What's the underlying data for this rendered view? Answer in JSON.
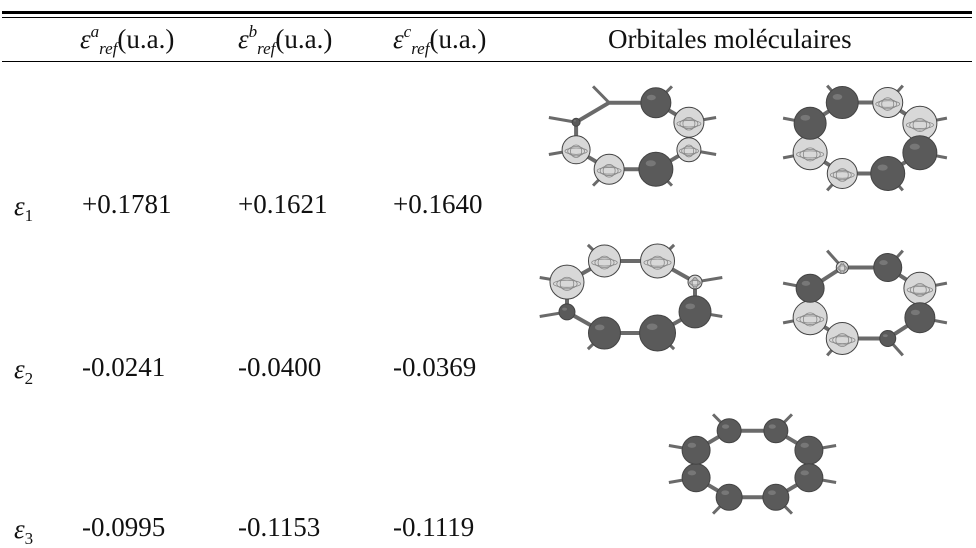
{
  "table": {
    "headers": {
      "col_a": {
        "sym": "ε",
        "sup": "a",
        "sub": "ref",
        "unit": "(u.a.)"
      },
      "col_b": {
        "sym": "ε",
        "sup": "b",
        "sub": "ref",
        "unit": "(u.a.)"
      },
      "col_c": {
        "sym": "ε",
        "sup": "c",
        "sub": "ref",
        "unit": "(u.a.)"
      },
      "orbitals": "Orbitales moléculaires"
    },
    "rows": [
      {
        "sym": "ε",
        "sub": "1",
        "a": "+0.1781",
        "b": "+0.1621",
        "c": "+0.1640"
      },
      {
        "sym": "ε",
        "sub": "2",
        "a": "-0.0241",
        "b": "-0.0400",
        "c": "-0.0369"
      },
      {
        "sym": "ε",
        "sub": "3",
        "a": "-0.0995",
        "b": "-0.1153",
        "c": "-0.1119"
      }
    ]
  },
  "colors": {
    "dark_lobe": "#5a5a5a",
    "light_lobe": "#d8d8d8",
    "bond": "#6a6a6a",
    "rule": "#000000"
  }
}
